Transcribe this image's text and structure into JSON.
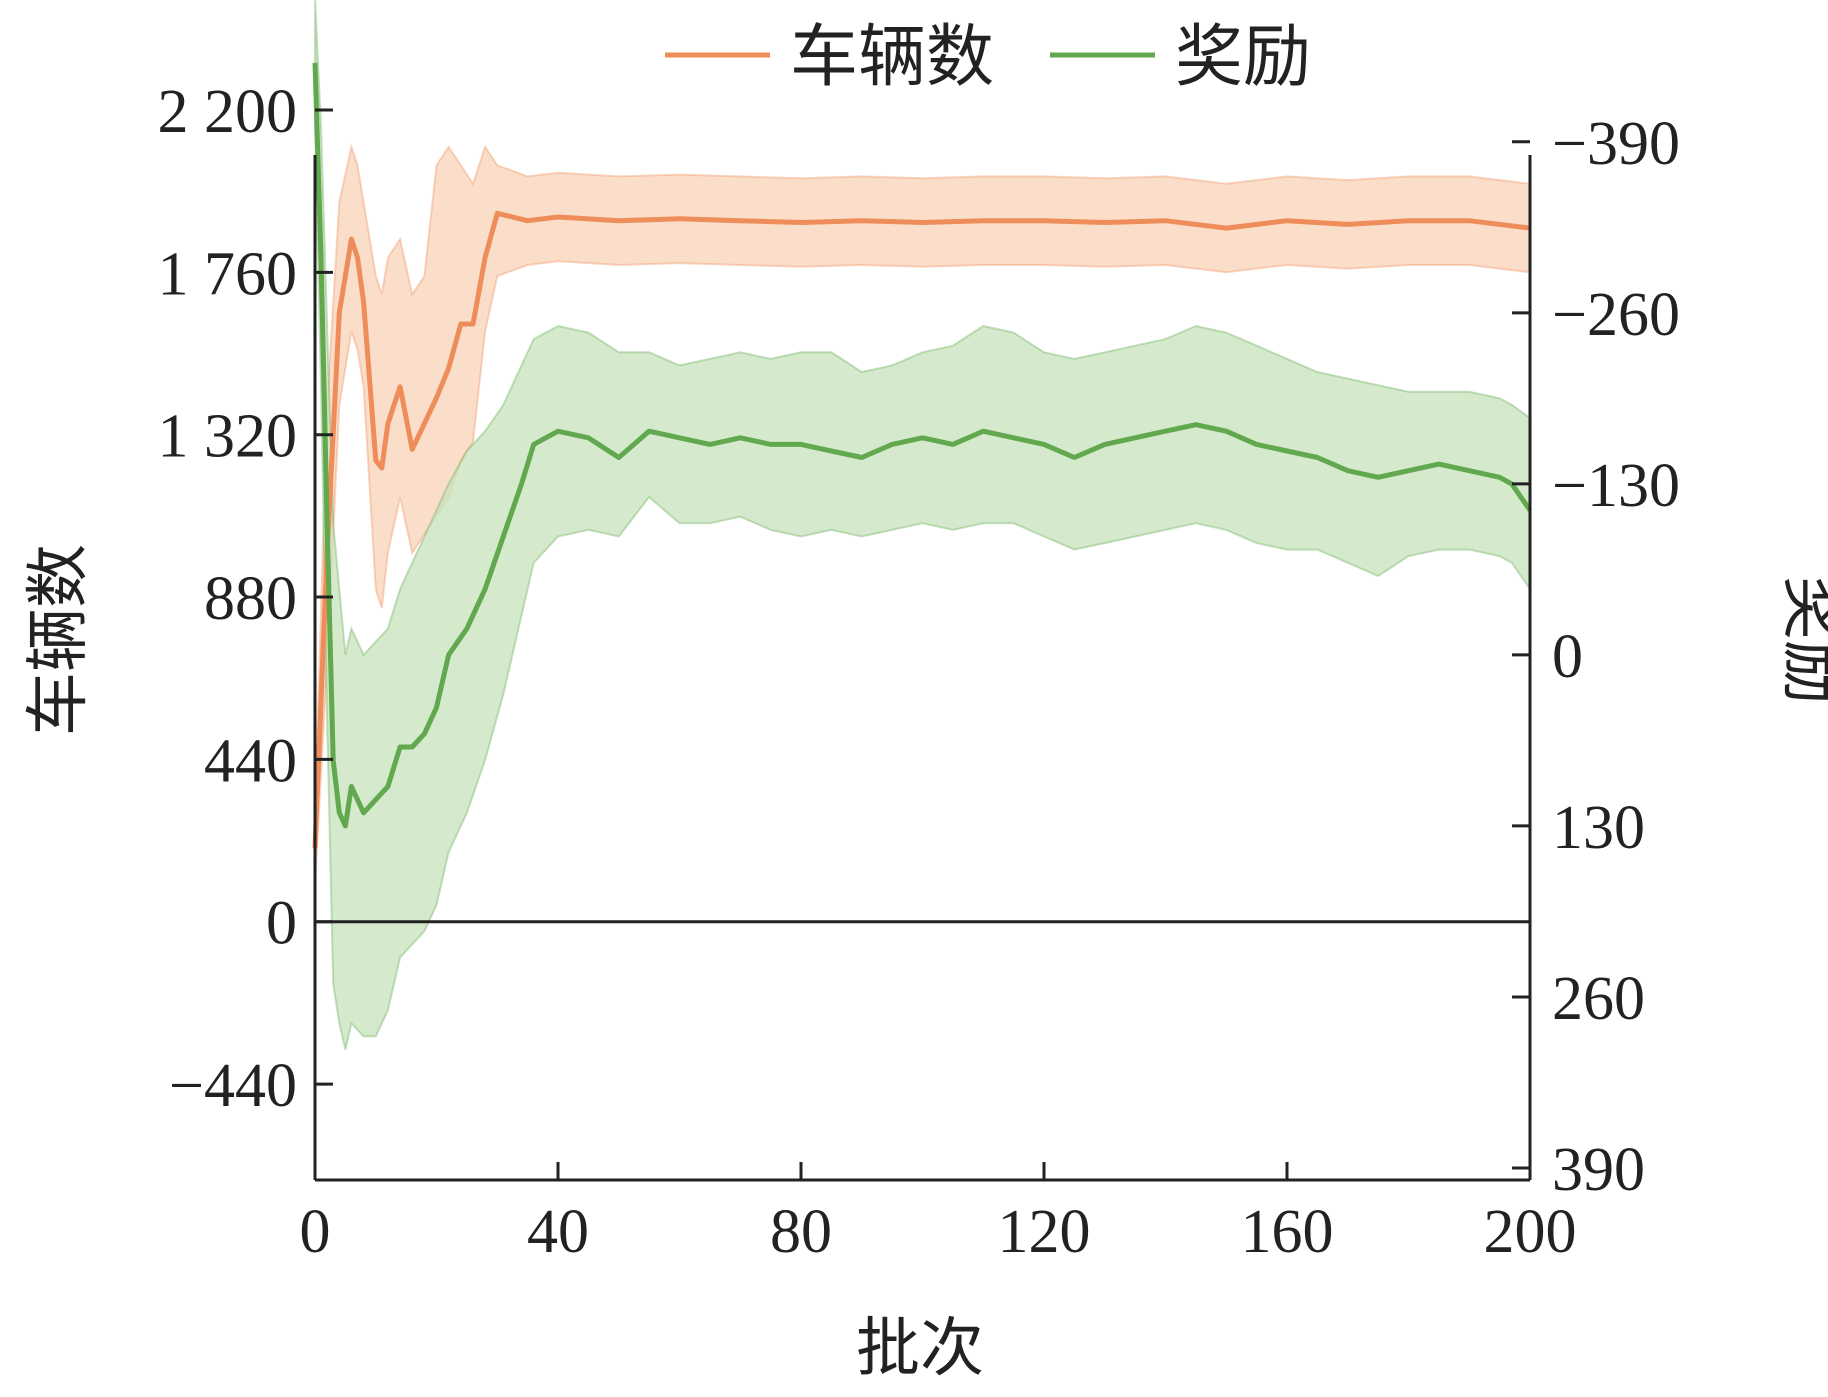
{
  "chart_data": {
    "type": "line",
    "xlabel": "批次",
    "ylabel_left": "车辆数",
    "ylabel_right": "奖励",
    "xlim": [
      0,
      200
    ],
    "ylim_left": [
      -700,
      2200
    ],
    "ylim_right": [
      390,
      -440
    ],
    "right_axis_inverted": true,
    "xticks": [
      0,
      40,
      80,
      120,
      160,
      200
    ],
    "xtick_labels": [
      "0",
      "40",
      "80",
      "120",
      "160",
      "200"
    ],
    "yticks_left": [
      2200,
      1760,
      1320,
      880,
      440,
      0,
      -440
    ],
    "ytick_labels_left": [
      "2 200",
      "1 760",
      "1 320",
      "880",
      "440",
      "0",
      "−440"
    ],
    "yticks_right": [
      -390,
      -260,
      -130,
      0,
      130,
      260,
      390
    ],
    "ytick_labels_right": [
      "−390",
      "−260",
      "−130",
      "0",
      "130",
      "260",
      "390"
    ],
    "reference_line": {
      "axis": "left",
      "y": 0,
      "color": "#222222"
    },
    "legend_position": "top-center",
    "series": [
      {
        "name": "车辆数",
        "axis": "left",
        "color": "#ee8c5a",
        "band_color": "#f9d3b7",
        "x": [
          0,
          2,
          4,
          6,
          7,
          8,
          10,
          11,
          12,
          14,
          16,
          18,
          20,
          22,
          24,
          26,
          28,
          30,
          35,
          40,
          50,
          60,
          70,
          80,
          90,
          100,
          110,
          120,
          130,
          140,
          150,
          160,
          170,
          180,
          190,
          200
        ],
        "values": [
          200,
          1000,
          1650,
          1850,
          1800,
          1680,
          1250,
          1230,
          1350,
          1450,
          1280,
          1350,
          1420,
          1500,
          1620,
          1620,
          1800,
          1920,
          1900,
          1910,
          1900,
          1905,
          1900,
          1895,
          1900,
          1895,
          1900,
          1900,
          1895,
          1900,
          1880,
          1900,
          1890,
          1900,
          1900,
          1880
        ],
        "lower": [
          100,
          700,
          1400,
          1600,
          1550,
          1450,
          900,
          850,
          1000,
          1150,
          1000,
          1050,
          1100,
          1150,
          1250,
          1300,
          1600,
          1750,
          1780,
          1790,
          1780,
          1785,
          1780,
          1775,
          1780,
          1775,
          1780,
          1780,
          1775,
          1780,
          1760,
          1780,
          1770,
          1780,
          1780,
          1760
        ],
        "upper": [
          300,
          1400,
          1950,
          2100,
          2050,
          1950,
          1750,
          1700,
          1800,
          1850,
          1700,
          1750,
          2050,
          2100,
          2050,
          2000,
          2100,
          2050,
          2020,
          2030,
          2020,
          2025,
          2020,
          2015,
          2020,
          2015,
          2020,
          2020,
          2015,
          2020,
          2000,
          2020,
          2010,
          2020,
          2020,
          2000
        ]
      },
      {
        "name": "奖励",
        "axis": "right",
        "color": "#61a84f",
        "band_color": "#c7e3bb",
        "x": [
          0,
          1,
          2,
          3,
          4,
          5,
          6,
          8,
          10,
          12,
          14,
          16,
          18,
          20,
          22,
          25,
          28,
          31,
          34,
          36,
          40,
          45,
          50,
          55,
          60,
          65,
          70,
          75,
          80,
          85,
          90,
          95,
          100,
          105,
          110,
          115,
          120,
          125,
          130,
          135,
          140,
          145,
          150,
          155,
          160,
          165,
          170,
          175,
          180,
          185,
          190,
          195,
          197,
          200
        ],
        "values": [
          -450,
          -300,
          -100,
          80,
          120,
          130,
          100,
          120,
          110,
          100,
          70,
          70,
          60,
          40,
          0,
          -20,
          -50,
          -90,
          -130,
          -160,
          -170,
          -165,
          -150,
          -170,
          -165,
          -160,
          -165,
          -160,
          -160,
          -155,
          -150,
          -160,
          -165,
          -160,
          -170,
          -165,
          -160,
          -150,
          -160,
          -165,
          -170,
          -175,
          -170,
          -160,
          -155,
          -150,
          -140,
          -135,
          -140,
          -145,
          -140,
          -135,
          -130,
          -110
        ],
        "lower": [
          -500,
          -400,
          -250,
          -100,
          -50,
          0,
          -20,
          0,
          -10,
          -20,
          -50,
          -70,
          -90,
          -110,
          -130,
          -155,
          -170,
          -190,
          -220,
          -240,
          -250,
          -245,
          -230,
          -230,
          -220,
          -225,
          -230,
          -225,
          -230,
          -230,
          -215,
          -220,
          -230,
          -235,
          -250,
          -245,
          -230,
          -225,
          -230,
          -235,
          -240,
          -250,
          -245,
          -235,
          -225,
          -215,
          -210,
          -205,
          -200,
          -200,
          -200,
          -195,
          -190,
          -180
        ],
        "upper": [
          -400,
          -200,
          50,
          250,
          280,
          300,
          280,
          290,
          290,
          270,
          230,
          220,
          210,
          190,
          150,
          120,
          80,
          30,
          -30,
          -70,
          -90,
          -95,
          -90,
          -120,
          -100,
          -100,
          -105,
          -95,
          -90,
          -95,
          -90,
          -95,
          -100,
          -95,
          -100,
          -100,
          -90,
          -80,
          -85,
          -90,
          -95,
          -100,
          -95,
          -85,
          -80,
          -80,
          -70,
          -60,
          -75,
          -80,
          -80,
          -75,
          -70,
          -50
        ]
      }
    ]
  }
}
